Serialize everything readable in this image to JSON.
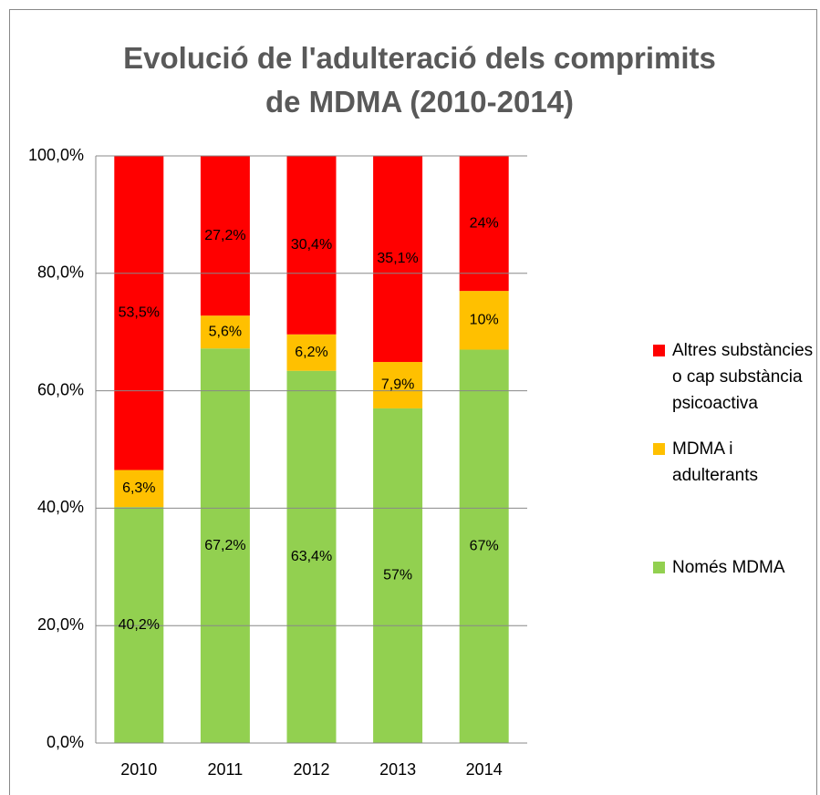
{
  "chart_data": {
    "type": "stacked_bar",
    "title": "Evolució de l'adulteració dels comprimits de MDMA (2010-2014)",
    "categories": [
      "2010",
      "2011",
      "2012",
      "2013",
      "2014"
    ],
    "series": [
      {
        "name": "Només MDMA",
        "color": "#92d050",
        "values": [
          40.2,
          67.2,
          63.4,
          57,
          67
        ],
        "value_labels": [
          "40,2%",
          "67,2%",
          "63,4%",
          "57%",
          "67%"
        ]
      },
      {
        "name": "MDMA i adulterants",
        "color": "#ffc000",
        "values": [
          6.3,
          5.6,
          6.2,
          7.9,
          10
        ],
        "value_labels": [
          "6,3%",
          "5,6%",
          "6,2%",
          "7,9%",
          "10%"
        ]
      },
      {
        "name": "Altres substàncies o cap substància psicoactiva",
        "color": "#ff0000",
        "values": [
          53.5,
          27.2,
          30.4,
          35.1,
          24
        ],
        "value_labels": [
          "53,5%",
          "27,2%",
          "30,4%",
          "35,1%",
          "24%"
        ]
      }
    ],
    "ylim": [
      0,
      100
    ],
    "yticks": [
      {
        "value": 0,
        "label": "0,0%"
      },
      {
        "value": 20,
        "label": "20,0%"
      },
      {
        "value": 40,
        "label": "40,0%"
      },
      {
        "value": 60,
        "label": "60,0%"
      },
      {
        "value": 80,
        "label": "80,0%"
      },
      {
        "value": 100,
        "label": "100,0%"
      }
    ],
    "grid": true,
    "legend": "right"
  }
}
